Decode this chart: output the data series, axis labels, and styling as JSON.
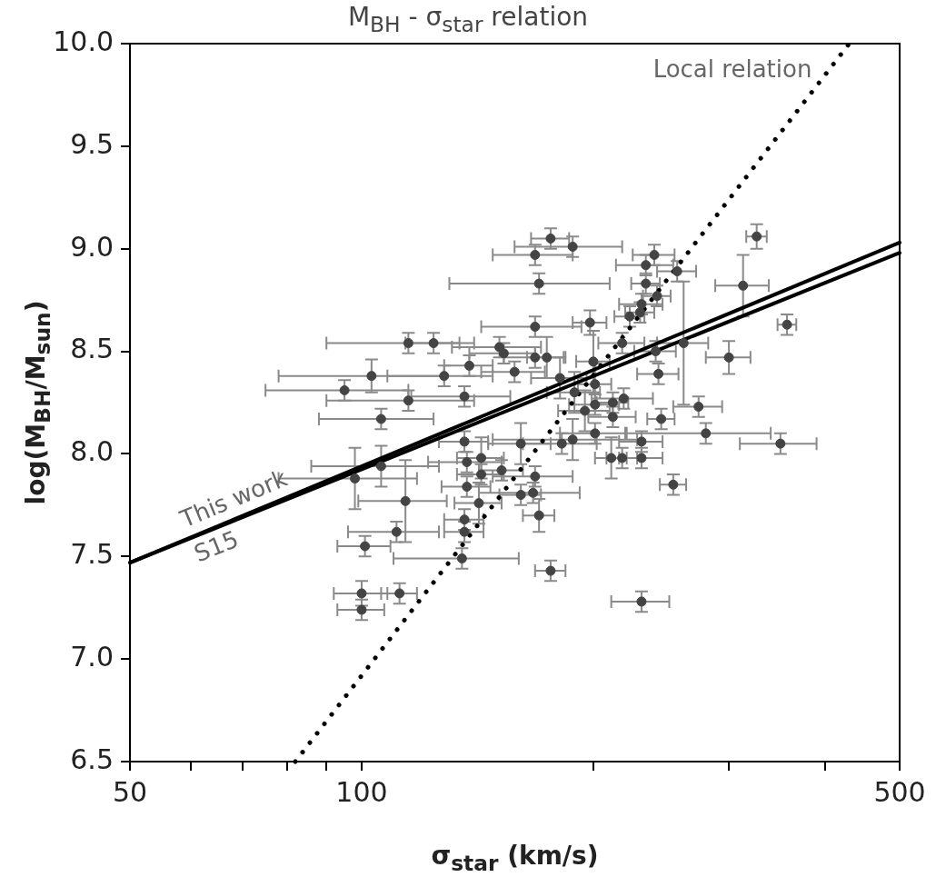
{
  "chart_data": {
    "type": "scatter",
    "title": "M$_{BH}$ - σ$_{star}$ relation",
    "xlabel": "σ$_{star}$ (km/s)",
    "ylabel": "log(M$_{BH}$/M$_{sun}$)",
    "log": "x",
    "grid": false,
    "legend": false,
    "marker": "circle",
    "xlim": [
      50,
      500
    ],
    "xticks": [
      50,
      {
        "value": 60,
        "label": null
      },
      {
        "value": 70,
        "label": null
      },
      {
        "value": 80,
        "label": null
      },
      {
        "value": 90,
        "label": null
      },
      100,
      {
        "value": 200,
        "label": null
      },
      {
        "value": 300,
        "label": null
      },
      {
        "value": 400,
        "label": null
      },
      500
    ],
    "ylim": [
      6.5,
      10
    ],
    "yticks": [
      {
        "value": 6.5,
        "label": "6.5"
      },
      {
        "value": 7,
        "label": "7.0"
      },
      {
        "value": 7.5,
        "label": "7.5"
      },
      {
        "value": 8,
        "label": "8.0"
      },
      {
        "value": 8.5,
        "label": "8.5"
      },
      {
        "value": 9,
        "label": "9.0"
      },
      {
        "value": 9.5,
        "label": "9.5"
      },
      {
        "value": 10,
        "label": "10.0"
      }
    ],
    "series": [
      {
        "color": "#444444",
        "x": [
          115,
          124,
          103,
          95,
          115,
          106,
          128,
          138,
          136,
          151,
          106,
          98,
          114,
          111,
          101,
          100,
          100,
          112,
          135,
          136,
          136,
          137,
          143,
          143,
          137,
          142,
          152,
          136,
          176,
          168,
          188,
          170,
          240,
          234,
          326,
          257,
          234,
          313,
          242,
          231,
          230,
          223,
          168,
          198,
          153,
          168,
          174,
          158,
          181,
          200,
          218,
          241,
          262,
          300,
          357,
          243,
          189,
          201,
          274,
          219,
          212,
          245,
          212,
          201,
          195,
          280,
          350,
          231,
          231,
          218,
          211,
          254,
          201,
          188,
          182,
          161,
          168,
          167,
          161,
          170,
          176,
          231
        ],
        "values": [
          8.54,
          8.54,
          8.38,
          8.31,
          8.26,
          8.17,
          8.38,
          8.43,
          8.28,
          8.52,
          7.94,
          7.88,
          7.77,
          7.62,
          7.55,
          7.32,
          7.24,
          7.32,
          7.49,
          7.62,
          7.68,
          7.96,
          7.98,
          7.9,
          7.84,
          7.76,
          7.92,
          8.06,
          9.05,
          8.97,
          9.01,
          8.83,
          8.97,
          8.92,
          9.06,
          8.89,
          8.83,
          8.82,
          8.77,
          8.73,
          8.69,
          8.67,
          8.62,
          8.64,
          8.49,
          8.47,
          8.47,
          8.4,
          8.37,
          8.45,
          8.54,
          8.5,
          8.54,
          8.47,
          8.63,
          8.39,
          8.3,
          8.34,
          8.23,
          8.27,
          8.25,
          8.17,
          8.18,
          8.24,
          8.21,
          8.1,
          8.05,
          8.06,
          7.98,
          7.98,
          7.98,
          7.85,
          8.1,
          8.07,
          8.05,
          8.05,
          7.89,
          7.81,
          7.8,
          7.7,
          7.43,
          7.28
        ],
        "xerrors": [
          25,
          10,
          25,
          20,
          25,
          18,
          20,
          10,
          20,
          20,
          20,
          20,
          15,
          15,
          8,
          8,
          7,
          6,
          25,
          8,
          8,
          15,
          10,
          10,
          10,
          10,
          10,
          10,
          10,
          20,
          30,
          40,
          15,
          20,
          10,
          15,
          10,
          25,
          10,
          15,
          10,
          10,
          25,
          10,
          15,
          15,
          10,
          15,
          15,
          10,
          15,
          15,
          20,
          20,
          10,
          15,
          15,
          10,
          20,
          20,
          10,
          10,
          15,
          15,
          15,
          60,
          40,
          15,
          15,
          10,
          10,
          10,
          20,
          40,
          20,
          15,
          20,
          25,
          10,
          8,
          8,
          20
        ],
        "errors": [
          0.05,
          0.05,
          0.08,
          0.05,
          0.05,
          0.05,
          0.05,
          0.05,
          0.05,
          0.05,
          0.1,
          0.15,
          0.2,
          0.05,
          0.05,
          0.06,
          0.05,
          0.05,
          0.05,
          0.05,
          0.05,
          0.05,
          0.1,
          0.05,
          0.05,
          0.1,
          0.05,
          0.05,
          0.05,
          0.05,
          0.05,
          0.05,
          0.05,
          0.05,
          0.06,
          0.05,
          0.05,
          0.15,
          0.05,
          0.05,
          0.05,
          0.05,
          0.05,
          0.06,
          0.05,
          0.05,
          0.1,
          0.05,
          0.1,
          0.15,
          0.05,
          0.05,
          0.3,
          0.08,
          0.05,
          0.05,
          0.1,
          0.1,
          0.05,
          0.05,
          0.05,
          0.05,
          0.05,
          0.05,
          0.1,
          0.05,
          0.05,
          0.05,
          0.05,
          0.05,
          0.1,
          0.05,
          0.05,
          0.1,
          0.05,
          0.1,
          0.05,
          0.05,
          0.05,
          0.08,
          0.05,
          0.05
        ]
      },
      {
        "type": "line",
        "name": "This work",
        "color": "#000000",
        "marker": "none",
        "x": [
          50,
          500
        ],
        "values": [
          7.47,
          9.03
        ]
      },
      {
        "type": "line",
        "name": "S15",
        "color": "#000000",
        "marker": "none",
        "x": [
          50,
          500
        ],
        "values": [
          7.47,
          8.98
        ]
      },
      {
        "type": "line",
        "name": "Local relation",
        "color": "#000000",
        "marker": "none",
        "line_style": "dotted",
        "x": [
          82,
          430
        ],
        "values": [
          6.5,
          10.0
        ]
      }
    ]
  }
}
